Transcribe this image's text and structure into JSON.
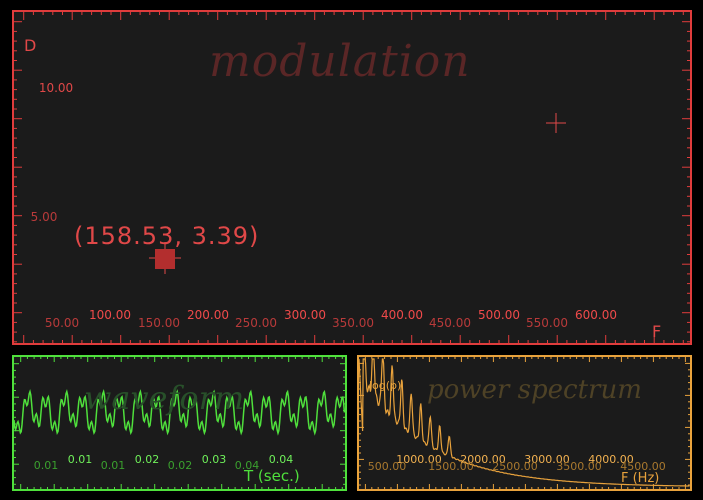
{
  "modulation": {
    "title": "modulation",
    "y_axis_label": "D",
    "x_axis_label": "F",
    "y_ticks": [
      "10.00",
      "5.00"
    ],
    "x_ticks_upper": [
      "100.00",
      "200.00",
      "300.00",
      "400.00",
      "500.00",
      "600.00"
    ],
    "x_ticks_lower": [
      "50.00",
      "150.00",
      "250.00",
      "350.00",
      "450.00",
      "550.00"
    ],
    "readout": "(158.53, 3.39)",
    "color": "#e03c3c"
  },
  "waveform": {
    "title": "waveform",
    "x_axis_label": "T (sec.)",
    "x_ticks_upper": [
      "0.01",
      "0.02",
      "0.03",
      "0.04"
    ],
    "x_ticks_lower": [
      "0.01",
      "0.01",
      "0.02",
      "0.04"
    ],
    "color": "#4fe03c"
  },
  "spectrum": {
    "title": "power spectrum",
    "y_axis_label": "log(p)",
    "x_axis_label": "F (Hz)",
    "x_ticks_upper": [
      "1000.00",
      "2000.00",
      "3000.00",
      "4000.00"
    ],
    "x_ticks_lower": [
      "500.00",
      "1500.00",
      "2500.00",
      "3500.00",
      "4500.00"
    ],
    "color": "#e8a23c"
  }
}
